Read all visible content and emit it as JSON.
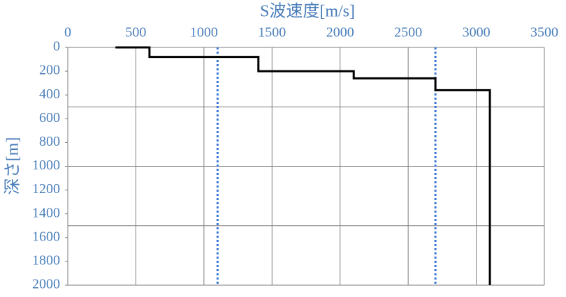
{
  "chart_data": {
    "type": "line",
    "x_label": "S波速度[m/s]",
    "y_label": "深さ[m]",
    "xlim": [
      0,
      3500
    ],
    "xticks": [
      0,
      500,
      1000,
      1500,
      2000,
      2500,
      3000,
      3500
    ],
    "ylim": [
      0,
      2000
    ],
    "yticks": [
      0,
      200,
      400,
      600,
      800,
      1000,
      1200,
      1400,
      1600,
      1800,
      2000
    ],
    "y_inverted": true,
    "x_grid": true,
    "y_grid_lines": [
      500,
      1000,
      1500
    ],
    "series": [
      {
        "color": "#000000",
        "x": [
          350,
          600,
          600,
          1400,
          1400,
          2100,
          2100,
          2700,
          2700,
          3100,
          3100
        ],
        "values": [
          0,
          0,
          80,
          80,
          200,
          200,
          260,
          260,
          360,
          360,
          2000
        ]
      }
    ],
    "reference_lines": [
      {
        "x": 1100,
        "color": "#3a78d8"
      },
      {
        "x": 2700,
        "color": "#3a78d8"
      }
    ]
  }
}
